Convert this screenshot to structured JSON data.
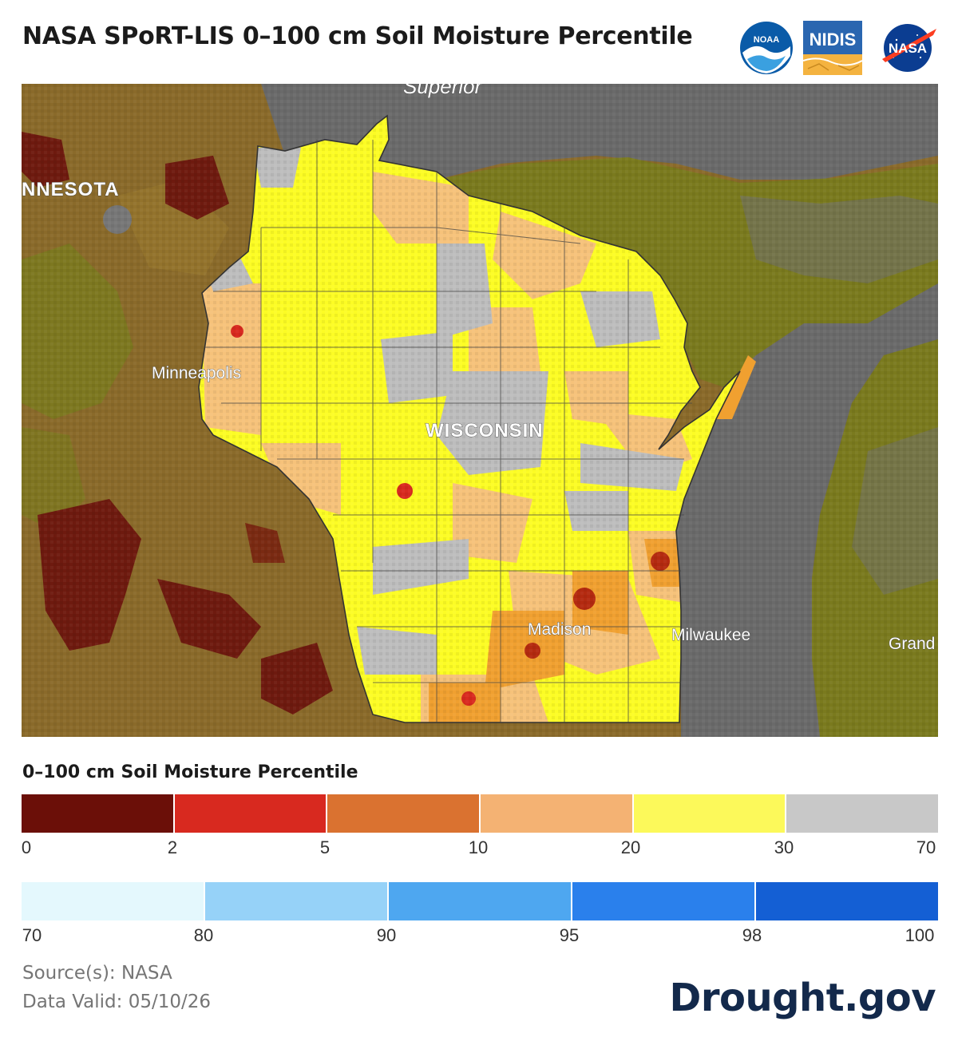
{
  "header": {
    "title": "NASA SPoRT-LIS 0–100 cm Soil Moisture Percentile",
    "logos": [
      {
        "name": "noaa-logo",
        "text": "NOAA"
      },
      {
        "name": "nidis-logo",
        "text": "NIDIS"
      },
      {
        "name": "nasa-logo",
        "text": "NASA"
      }
    ]
  },
  "map": {
    "labels": {
      "lake": "Superior",
      "state_mn": "NNESOTA",
      "state_wi": "WISCONSIN",
      "city_minneapolis": "Minneapolis",
      "city_madison": "Madison",
      "city_milwaukee": "Milwaukee",
      "city_grand": "Grand"
    },
    "colors": {
      "water": "#6a6a6a",
      "land_dry_dark": "#6e1a0f",
      "land_brown": "#8a6a2a",
      "land_olive": "#7a7a1e",
      "wi_yellow": "#fcfc24",
      "wi_peach": "#f6c27a",
      "wi_gray": "#bdbdbd",
      "wi_orange": "#f0a030",
      "wi_red": "#b42a10"
    }
  },
  "legend": {
    "title": "0–100 cm Soil Moisture Percentile",
    "dry_colors": [
      "#6b0f08",
      "#d8291f",
      "#da7230",
      "#f4b273",
      "#fcf95a",
      "#c8c8c8"
    ],
    "dry_ticks": [
      "0",
      "2",
      "5",
      "10",
      "20",
      "30",
      "70"
    ],
    "wet_colors": [
      "#e4f8fd",
      "#96d2f8",
      "#4ea7f0",
      "#2a80ec",
      "#145fd4"
    ],
    "wet_ticks": [
      "70",
      "80",
      "90",
      "95",
      "98",
      "100"
    ]
  },
  "footer": {
    "source": "Source(s): NASA",
    "valid": "Data Valid: 05/10/26",
    "brand": "Drought.gov"
  }
}
